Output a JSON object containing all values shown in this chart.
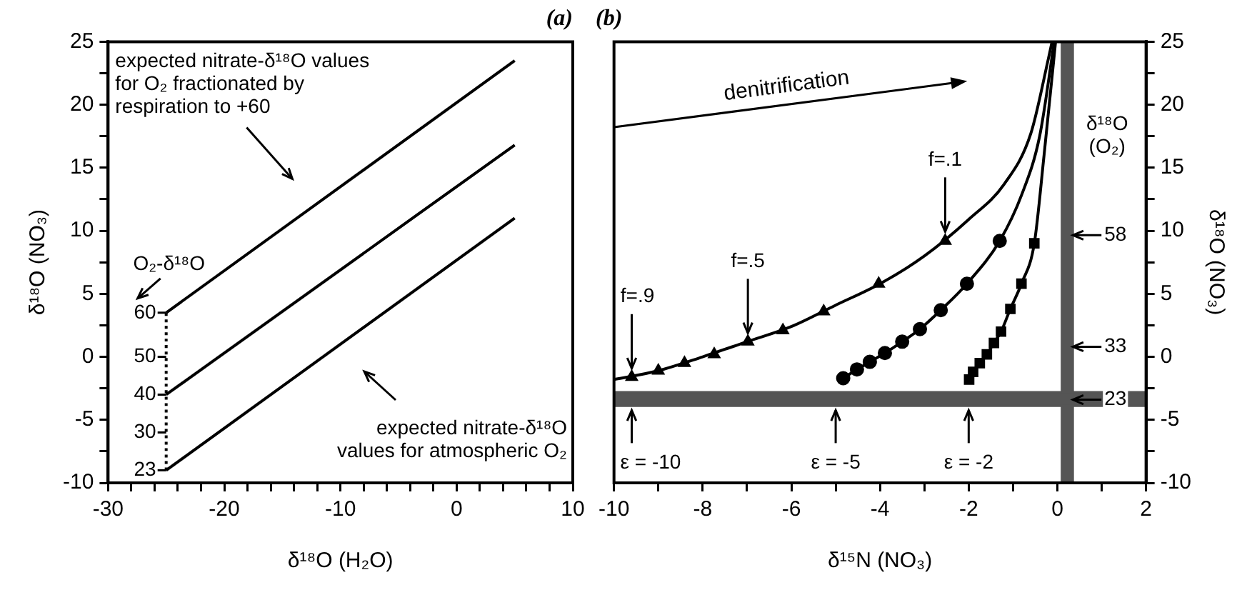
{
  "chart_data": [
    {
      "type": "line",
      "title": "(a)",
      "xlabel": "δ¹⁸O (H₂O)",
      "ylabel": "δ¹⁸O (NO₃)",
      "grid": false,
      "legend": false,
      "marker": "none",
      "xlim": [
        -30,
        10
      ],
      "xticks": [
        -30,
        {
          "value": -28,
          "label": null
        },
        {
          "value": -26,
          "label": null
        },
        {
          "value": -24,
          "label": null
        },
        {
          "value": -22,
          "label": null
        },
        -20,
        {
          "value": -18,
          "label": null
        },
        {
          "value": -16,
          "label": null
        },
        {
          "value": -14,
          "label": null
        },
        {
          "value": -12,
          "label": null
        },
        -10,
        {
          "value": -8,
          "label": null
        },
        {
          "value": -6,
          "label": null
        },
        {
          "value": -4,
          "label": null
        },
        {
          "value": -2,
          "label": null
        },
        0,
        {
          "value": 2,
          "label": null
        },
        {
          "value": 4,
          "label": null
        },
        {
          "value": 6,
          "label": null
        },
        {
          "value": 8,
          "label": null
        },
        10
      ],
      "ylim": [
        -10,
        25
      ],
      "yticks": [
        -10,
        {
          "value": -7.5,
          "label": null
        },
        -5,
        {
          "value": -2.5,
          "label": null
        },
        0,
        {
          "value": 2.5,
          "label": null
        },
        5,
        {
          "value": 7.5,
          "label": null
        },
        10,
        {
          "value": 12.5,
          "label": null
        },
        15,
        {
          "value": 17.5,
          "label": null
        },
        20,
        {
          "value": 22.5,
          "label": null
        },
        25
      ],
      "series": [
        {
          "color": "#000000",
          "x": [
            -25,
            5
          ],
          "values": [
            3.5,
            23.5
          ]
        },
        {
          "color": "#000000",
          "x": [
            -25,
            5
          ],
          "values": [
            -3,
            16.8
          ]
        },
        {
          "color": "#000000",
          "x": [
            -25,
            5
          ],
          "values": [
            -9,
            11
          ]
        },
        {
          "color": "#000000",
          "x": [
            -25,
            -25
          ],
          "values": [
            -9,
            3.5
          ],
          "line_style": "dotted"
        }
      ],
      "annotations": [
        "expected nitrate-δ¹⁸O values\nfor O₂ fractionated by\nrespiration to +60",
        "expected nitrate-δ¹⁸O\nvalues for atmospheric O₂",
        {
          "text": "O₂-δ¹⁸O",
          "x": -25,
          "y": 3.5
        },
        {
          "text": "60",
          "x": -25,
          "y": 3.5
        },
        {
          "text": "50",
          "x": -25,
          "y": 0
        },
        {
          "text": "40",
          "x": -25,
          "y": -3
        },
        {
          "text": "30",
          "x": -25,
          "y": -6
        },
        {
          "text": "23",
          "x": -25,
          "y": -9
        }
      ]
    },
    {
      "type": "line",
      "title": "(b)",
      "xlabel": "δ¹⁵N (NO₃)",
      "ylabel": "δ¹⁸O (NO₃)",
      "grid": false,
      "legend": false,
      "marker": "none",
      "xlim": [
        -10,
        2
      ],
      "xticks": [
        -10,
        {
          "value": -9,
          "label": null
        },
        -8,
        {
          "value": -7,
          "label": null
        },
        -6,
        {
          "value": -5,
          "label": null
        },
        -4,
        {
          "value": -3,
          "label": null
        },
        -2,
        {
          "value": -1,
          "label": null
        },
        0,
        {
          "value": 1,
          "label": null
        },
        2
      ],
      "ylim": [
        -10,
        25
      ],
      "yticks": [
        -10,
        {
          "value": -7.5,
          "label": null
        },
        -5,
        {
          "value": -2.5,
          "label": null
        },
        0,
        {
          "value": 2.5,
          "label": null
        },
        5,
        {
          "value": 7.5,
          "label": null
        },
        10,
        {
          "value": 12.5,
          "label": null
        },
        15,
        {
          "value": 17.5,
          "label": null
        },
        20,
        {
          "value": 22.5,
          "label": null
        },
        25
      ],
      "bands": [
        {
          "axis": "x",
          "from": 0.1,
          "to": 0.35,
          "color": "#555555"
        },
        {
          "axis": "y",
          "from": -3.9,
          "to": -2.8,
          "color": "#555555"
        }
      ],
      "series": [
        {
          "color": "#000000",
          "x": [
            -10,
            -9,
            -8,
            -7,
            -6,
            -5,
            -4,
            -3,
            -2,
            -1.2,
            -0.6,
            -0.2,
            -0.12
          ],
          "values": [
            -1.8,
            -1.1,
            0,
            1.2,
            2.4,
            4.1,
            5.8,
            8,
            10.9,
            13.7,
            17.7,
            23.7,
            25
          ]
        },
        {
          "color": "#000000",
          "x": [
            -4.83,
            -4.52,
            -4.23,
            -3.89,
            -3.5,
            -3.1,
            -2.63,
            -2.04,
            -1.3,
            -0.8,
            -0.4,
            -0.07
          ],
          "values": [
            -1.7,
            -1,
            -0.4,
            0.3,
            1.2,
            2.2,
            3.7,
            5.8,
            9.2,
            12.9,
            17.5,
            25
          ]
        },
        {
          "color": "#000000",
          "x": [
            -1.99,
            -1.9,
            -1.75,
            -1.59,
            -1.43,
            -1.27,
            -1.06,
            -0.81,
            -0.52,
            -0.3,
            -0.04
          ],
          "values": [
            -1.8,
            -1.2,
            -0.5,
            0.2,
            1.1,
            2,
            3.8,
            5.8,
            9,
            16,
            25
          ]
        },
        {
          "type": "scatter",
          "marker": "triangle",
          "color": "#000000",
          "x": [
            -9.6,
            -9,
            -8.41,
            -7.74,
            -6.98,
            -6.19,
            -5.27,
            -4.03,
            -2.53
          ],
          "values": [
            -1.6,
            -1.1,
            -0.5,
            0.2,
            1.2,
            2.1,
            3.6,
            5.8,
            9.2
          ]
        },
        {
          "type": "scatter",
          "marker": "circle",
          "color": "#000000",
          "x": [
            -4.83,
            -4.52,
            -4.23,
            -3.89,
            -3.5,
            -3.1,
            -2.63,
            -2.04,
            -1.3
          ],
          "values": [
            -1.7,
            -1,
            -0.4,
            0.3,
            1.2,
            2.2,
            3.7,
            5.8,
            9.2
          ]
        },
        {
          "type": "scatter",
          "marker": "square",
          "color": "#000000",
          "x": [
            -1.99,
            -1.9,
            -1.75,
            -1.59,
            -1.43,
            -1.27,
            -1.06,
            -0.81,
            -0.52
          ],
          "values": [
            -1.8,
            -1.2,
            -0.5,
            0.2,
            1.1,
            2,
            3.8,
            5.8,
            9
          ]
        }
      ],
      "annotations": [
        "denitrification",
        {
          "text": "f=.1",
          "x": -2.53,
          "y": 9.25
        },
        {
          "text": "f=.5",
          "x": -6.98,
          "y": 1.2
        },
        {
          "text": "f=.9",
          "x": -9.6,
          "y": -1.6
        },
        {
          "text": "ε = -10",
          "x": -9.6,
          "y": -3.9
        },
        {
          "text": "ε = -5",
          "x": -5,
          "y": -3.9
        },
        {
          "text": "ε = -2",
          "x": -2,
          "y": -3.9
        },
        {
          "text": "δ¹⁸O\n(O₂)",
          "x": 0.35,
          "y": 20
        },
        {
          "text": "58",
          "x": 0.35,
          "y": 9.65
        },
        {
          "text": "33",
          "x": 0.35,
          "y": 0.8
        },
        {
          "text": "23",
          "x": 0.35,
          "y": -3.4
        }
      ]
    }
  ]
}
